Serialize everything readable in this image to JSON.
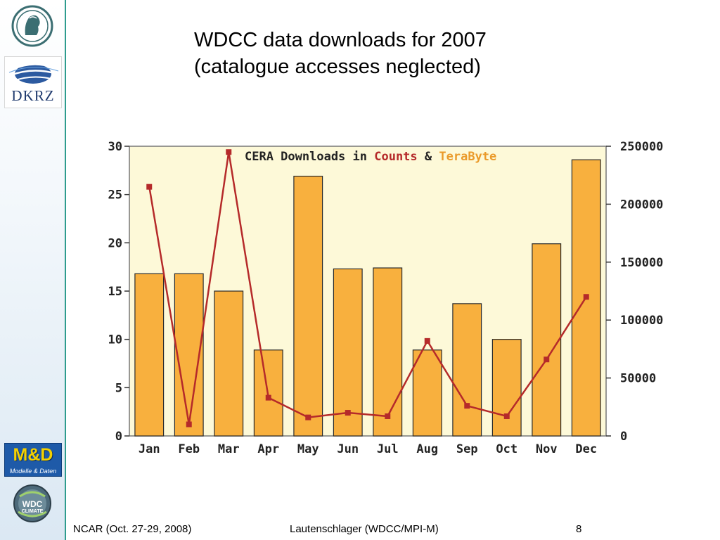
{
  "slide": {
    "title_line1": "WDCC data downloads for 2007",
    "title_line2": "(catalogue accesses neglected)"
  },
  "logos": {
    "dkrz": "DKRZ",
    "md_main": "M&D",
    "md_sub": "Modelle & Daten",
    "wdc_main": "WDC",
    "wdc_sub": "CLIMATE"
  },
  "footer": {
    "left": "NCAR (Oct. 27-29, 2008)",
    "center": "Lautenschlager (WDCC/MPI-M)",
    "page": "8"
  },
  "colors": {
    "bar_fill": "#f8b03e",
    "bar_stroke": "#2a2a2a",
    "line": "#b52a2a",
    "plot_bg": "#fdf9d8",
    "title_counts": "#b52a2a",
    "title_terabyte": "#ea9a2a"
  },
  "chart_data": {
    "type": "bar",
    "title_parts": [
      "CERA Downloads in ",
      "Counts",
      " & ",
      "TeraByte"
    ],
    "categories": [
      "Jan",
      "Feb",
      "Mar",
      "Apr",
      "May",
      "Jun",
      "Jul",
      "Aug",
      "Sep",
      "Oct",
      "Nov",
      "Dec"
    ],
    "series": [
      {
        "axis": "left",
        "type": "bar",
        "values": [
          16.8,
          16.8,
          15.0,
          8.9,
          26.9,
          17.3,
          17.4,
          8.9,
          13.7,
          10.0,
          19.9,
          28.6
        ]
      },
      {
        "axis": "right",
        "type": "line",
        "values": [
          215000,
          10000,
          245000,
          33000,
          16000,
          20000,
          17000,
          82000,
          26000,
          17000,
          66000,
          120000
        ]
      }
    ],
    "ylim_left": [
      0,
      30
    ],
    "ylim_right": [
      0,
      250000
    ],
    "yticks_left": [
      0,
      5,
      10,
      15,
      20,
      25,
      30
    ],
    "yticks_right": [
      0,
      50000,
      100000,
      150000,
      200000,
      250000
    ],
    "grid": false,
    "legend": "none"
  }
}
